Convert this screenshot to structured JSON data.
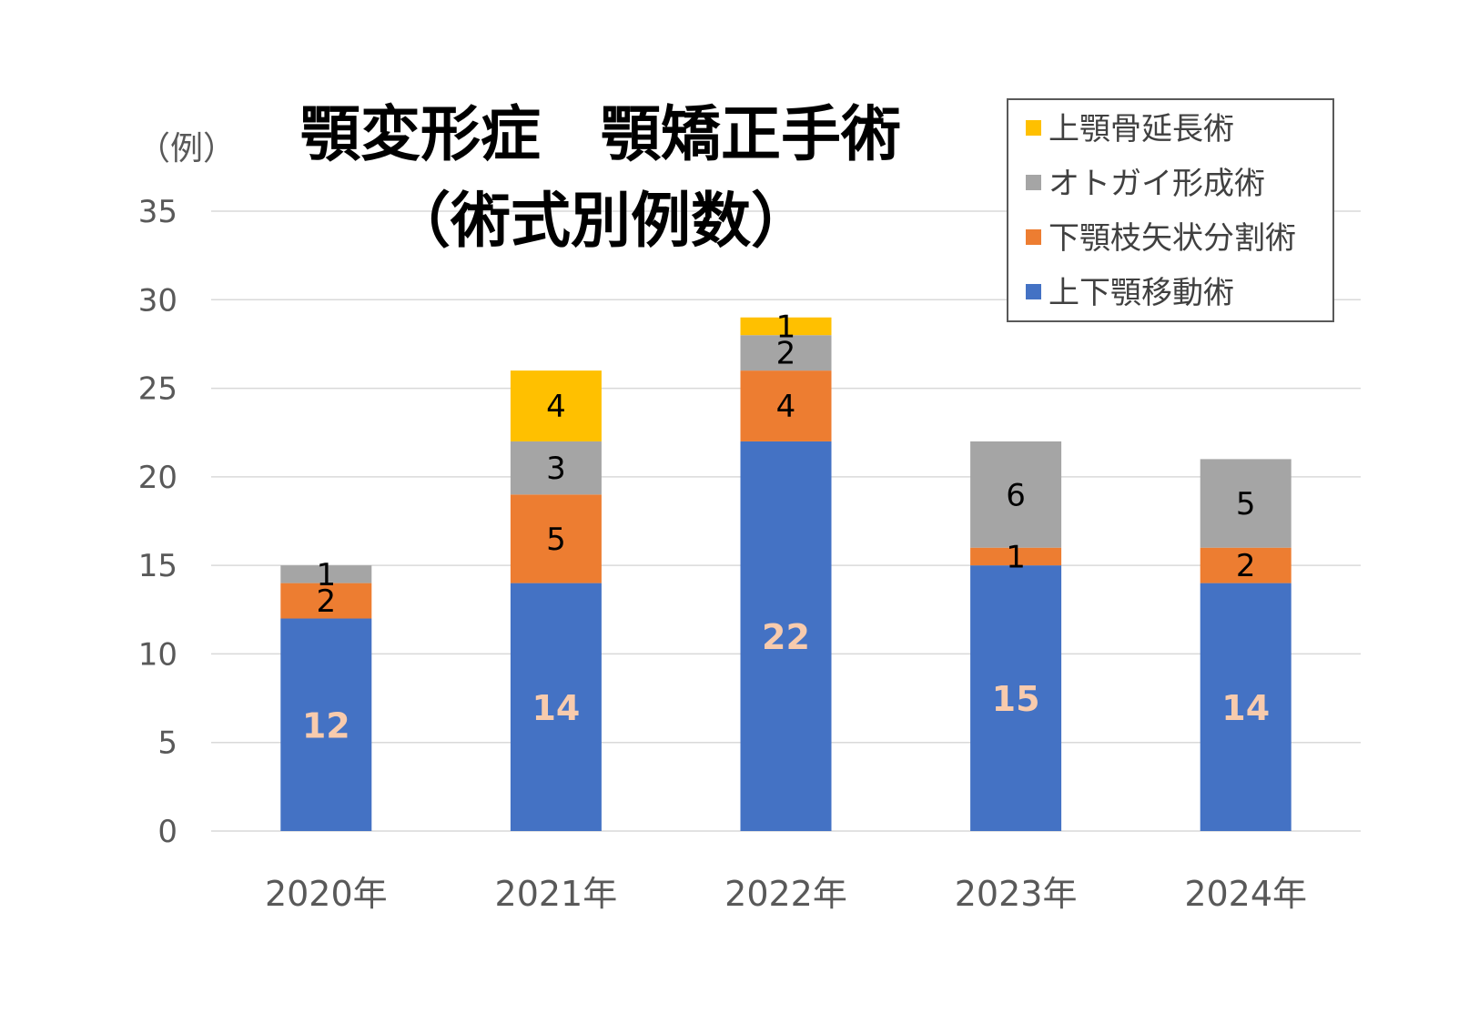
{
  "chart_data": {
    "type": "bar",
    "stacked": true,
    "title_lines": [
      "顎変形症　顎矯正手術",
      "（術式別例数）"
    ],
    "ylabel": "（例）",
    "xlabel": "",
    "categories": [
      "2020年",
      "2021年",
      "2022年",
      "2023年",
      "2024年"
    ],
    "ylim": [
      0,
      35
    ],
    "yticks": [
      0,
      5,
      10,
      15,
      20,
      25,
      30,
      35
    ],
    "grid": true,
    "legend_position": "top-right",
    "series": [
      {
        "name": "上下顎移動術",
        "color": "#4472c4",
        "values": [
          12,
          14,
          22,
          15,
          14
        ]
      },
      {
        "name": "下顎枝矢状分割術",
        "color": "#ed7d31",
        "values": [
          2,
          5,
          4,
          1,
          2
        ]
      },
      {
        "name": "オトガイ形成術",
        "color": "#a5a5a5",
        "values": [
          1,
          3,
          2,
          6,
          5
        ]
      },
      {
        "name": "上顎骨延長術",
        "color": "#ffc000",
        "values": [
          0,
          4,
          1,
          0,
          0
        ]
      }
    ],
    "legend_order": [
      "上顎骨延長術",
      "オトガイ形成術",
      "下顎枝矢状分割術",
      "上下顎移動術"
    ]
  }
}
